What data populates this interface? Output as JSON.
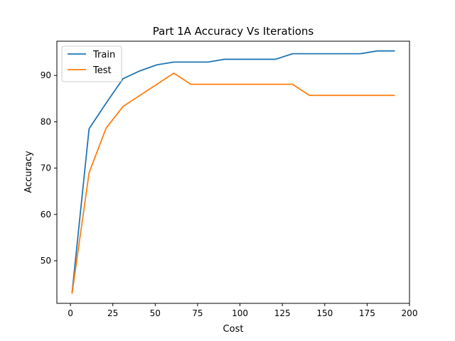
{
  "chart_data": {
    "type": "line",
    "title": "Part 1A Accuracy Vs Iterations",
    "xlabel": "Cost",
    "ylabel": "Accuracy",
    "xlim": [
      -8,
      200
    ],
    "ylim": [
      40.8,
      97.4
    ],
    "xticks": [
      0,
      25,
      50,
      75,
      100,
      125,
      150,
      175,
      200
    ],
    "yticks": [
      50,
      60,
      70,
      80,
      90
    ],
    "grid": false,
    "legend_position": "top-left",
    "x": [
      1,
      11,
      21,
      31,
      41,
      51,
      61,
      71,
      81,
      91,
      101,
      111,
      121,
      131,
      141,
      151,
      161,
      171,
      181,
      191
    ],
    "series": [
      {
        "name": "Train",
        "color": "#1f77b4",
        "values": [
          43.2,
          78.5,
          84.0,
          89.3,
          91.0,
          92.3,
          92.9,
          92.9,
          92.9,
          93.5,
          93.5,
          93.5,
          93.5,
          94.7,
          94.7,
          94.7,
          94.7,
          94.7,
          95.3,
          95.3
        ]
      },
      {
        "name": "Test",
        "color": "#ff7f0e",
        "values": [
          43.0,
          69.0,
          78.6,
          83.3,
          85.7,
          88.1,
          90.5,
          88.1,
          88.1,
          88.1,
          88.1,
          88.1,
          88.1,
          88.1,
          85.7,
          85.7,
          85.7,
          85.7,
          85.7,
          85.7
        ]
      }
    ]
  }
}
